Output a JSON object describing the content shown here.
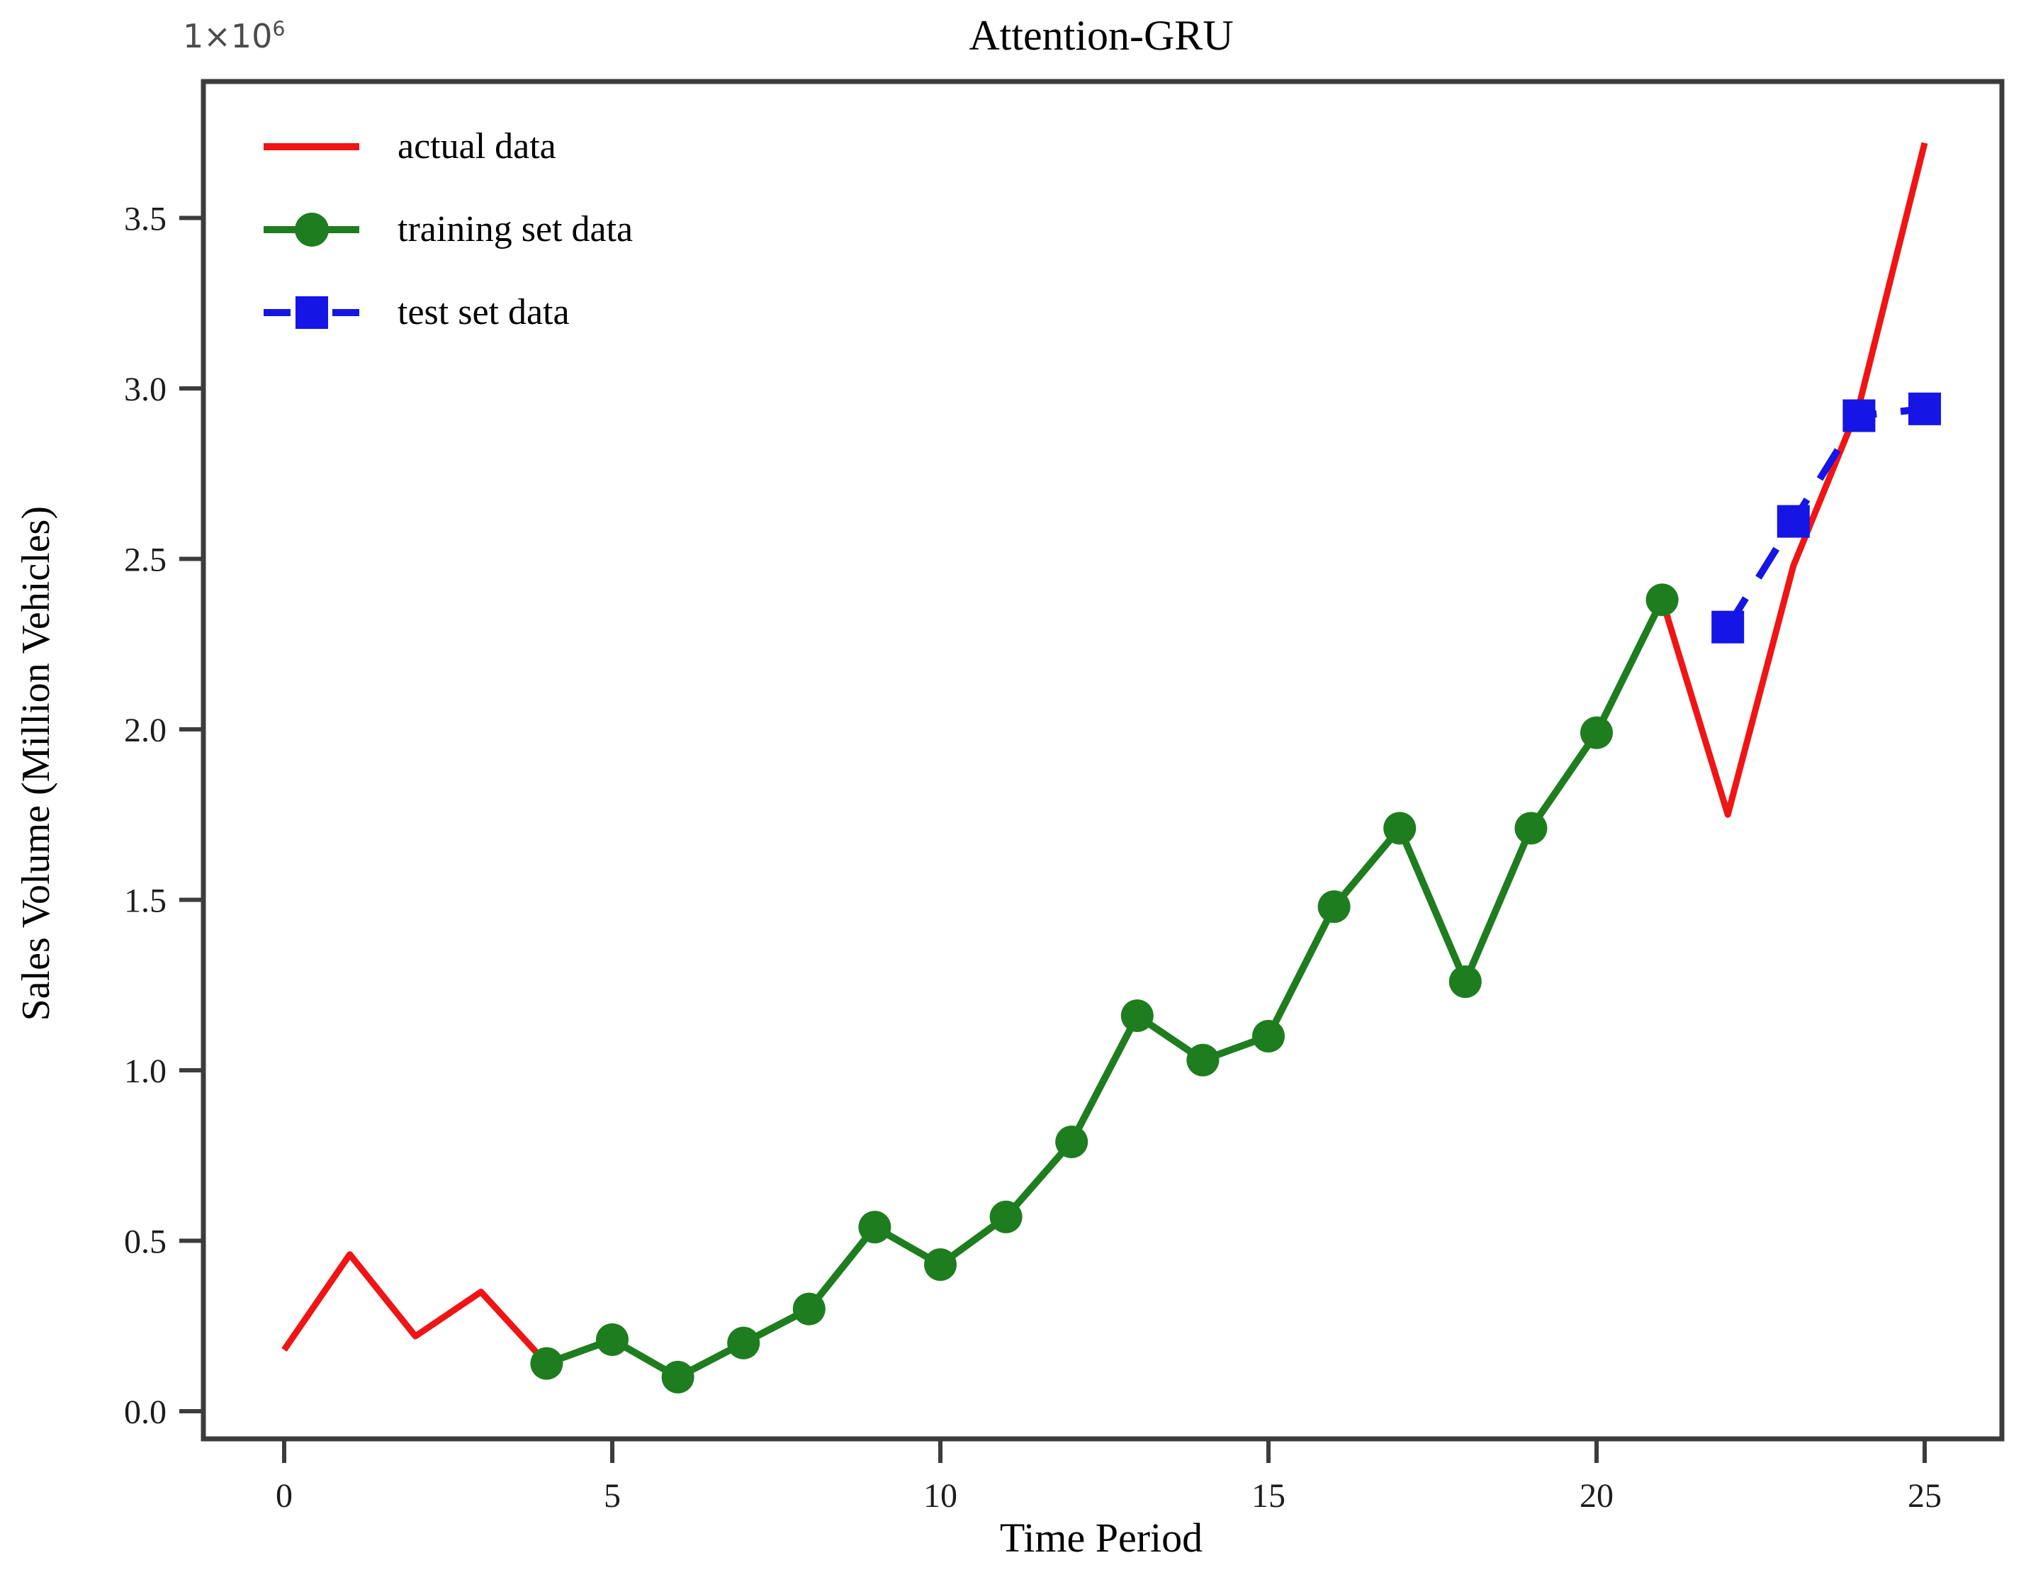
{
  "figure": {
    "title": "Attention-GRU",
    "xlabel": "Time Period",
    "ylabel": "Sales Volume (Million Vehicles)",
    "offset_base": "1×10",
    "offset_exp": "6"
  },
  "chart_data": {
    "type": "line",
    "title": "Attention-GRU",
    "xlabel": "Time Period",
    "ylabel": "Sales Volume (Million Vehicles)",
    "y_scale_label": "1×10^6",
    "xlim": [
      -1.3,
      26.2
    ],
    "ylim": [
      -0.1,
      3.9
    ],
    "xticks": [
      0,
      5,
      10,
      15,
      20,
      25
    ],
    "xticklabels": [
      "0",
      "5",
      "10",
      "15",
      "20",
      "25"
    ],
    "yticks": [
      0.0,
      0.5,
      1.0,
      1.5,
      2.0,
      2.5,
      3.0,
      3.5
    ],
    "yticklabels": [
      "0.0",
      "0.5",
      "1.0",
      "1.5",
      "2.0",
      "2.5",
      "3.0",
      "3.5"
    ],
    "grid": false,
    "legend_position": "upper left",
    "colors": {
      "actual": "#f01414",
      "training": "#1e7d1e",
      "test": "#1515e6",
      "axis": "#3c3c3c",
      "tick_text": "#1c1c1c"
    },
    "series": [
      {
        "name": "actual data",
        "color": "#f01414",
        "style": "solid",
        "marker": "none",
        "width": 9,
        "x": [
          0,
          1,
          2,
          3,
          4,
          5,
          6,
          7,
          8,
          9,
          10,
          11,
          12,
          13,
          14,
          15,
          16,
          17,
          18,
          19,
          20,
          21,
          22,
          23,
          24,
          25
        ],
        "y": [
          0.18,
          0.46,
          0.22,
          0.35,
          0.14,
          0.21,
          0.1,
          0.2,
          0.3,
          0.54,
          0.43,
          0.57,
          0.79,
          1.16,
          1.03,
          1.1,
          1.48,
          1.71,
          1.26,
          1.71,
          1.99,
          2.38,
          1.75,
          2.48,
          2.95,
          3.72
        ]
      },
      {
        "name": "training set data",
        "color": "#1e7d1e",
        "style": "solid",
        "marker": "circle",
        "width": 10,
        "x": [
          4,
          5,
          6,
          7,
          8,
          9,
          10,
          11,
          12,
          13,
          14,
          15,
          16,
          17,
          18,
          19,
          20,
          21
        ],
        "y": [
          0.14,
          0.21,
          0.1,
          0.2,
          0.3,
          0.54,
          0.43,
          0.57,
          0.79,
          1.16,
          1.03,
          1.1,
          1.48,
          1.71,
          1.26,
          1.71,
          1.99,
          2.38
        ]
      },
      {
        "name": "test set data",
        "color": "#1515e6",
        "style": "dashed",
        "marker": "square",
        "width": 10,
        "x": [
          22,
          23,
          24,
          25
        ],
        "y": [
          2.3,
          2.61,
          2.92,
          2.94
        ]
      }
    ]
  }
}
